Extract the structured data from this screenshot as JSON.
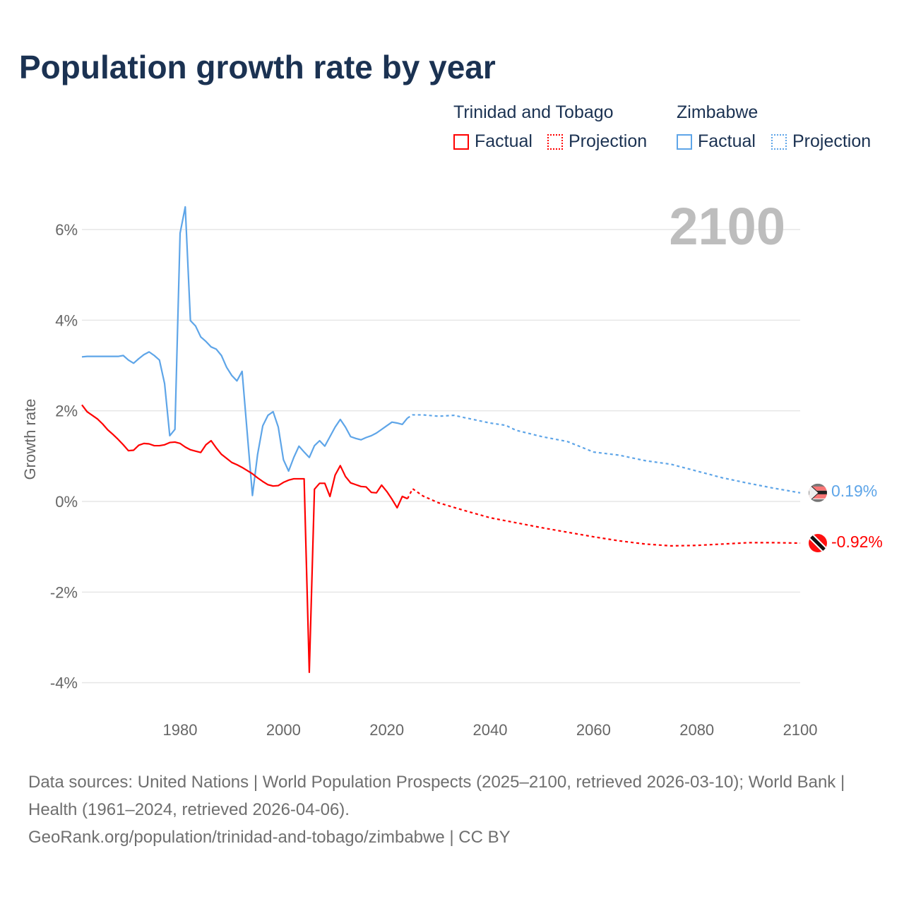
{
  "title": "Population growth rate by year",
  "legend": {
    "groups": [
      {
        "name": "Trinidad and Tobago",
        "color": "#ff0000",
        "factual": "Factual",
        "projection": "Projection"
      },
      {
        "name": "Zimbabwe",
        "color": "#5ea5e8",
        "factual": "Factual",
        "projection": "Projection"
      }
    ]
  },
  "current_year": "2100",
  "footer": {
    "sources": "Data sources: United Nations | World Population Prospects (2025–2100, retrieved 2026-03-10); World Bank | Health (1961–2024, retrieved 2026-04-06).",
    "link": "GeoRank.org/population/trinidad-and-tobago/zimbabwe | CC BY"
  },
  "chart_data": {
    "type": "line",
    "title": "Population growth rate by year",
    "xlabel": "",
    "ylabel": "Growth rate",
    "xlim": [
      1961,
      2100
    ],
    "ylim": [
      -4.6,
      6.6
    ],
    "x_ticks": [
      1980,
      2000,
      2020,
      2040,
      2060,
      2080,
      2100
    ],
    "x_tick_labels": [
      "1980",
      "2000",
      "2020",
      "2040",
      "2060",
      "2080",
      "2100"
    ],
    "y_ticks": [
      -4,
      -2,
      0,
      2,
      4,
      6
    ],
    "y_tick_labels": [
      "-4%",
      "-2%",
      "0%",
      "2%",
      "4%",
      "6%"
    ],
    "grid": true,
    "series": [
      {
        "name": "Zimbabwe",
        "color": "#5ea5e8",
        "end_label": "0.19%",
        "factual_start": 1961,
        "factual": [
          3.19,
          3.2,
          3.2,
          3.2,
          3.2,
          3.2,
          3.2,
          3.2,
          3.22,
          3.12,
          3.05,
          3.15,
          3.24,
          3.3,
          3.22,
          3.12,
          2.6,
          1.45,
          1.59,
          5.92,
          6.5,
          3.99,
          3.87,
          3.63,
          3.53,
          3.41,
          3.36,
          3.22,
          2.96,
          2.78,
          2.66,
          2.87,
          1.5,
          0.13,
          1.04,
          1.67,
          1.9,
          1.98,
          1.64,
          0.92,
          0.67,
          0.97,
          1.22,
          1.09,
          0.97,
          1.23,
          1.34,
          1.22,
          1.43,
          1.64,
          1.81,
          1.64,
          1.43,
          1.39,
          1.36,
          1.41,
          1.45,
          1.51,
          1.59,
          1.67,
          1.75,
          1.73,
          1.7,
          1.84
        ],
        "projection": [
          [
            2024,
            1.84
          ],
          [
            2025,
            1.91
          ],
          [
            2027,
            1.91
          ],
          [
            2030,
            1.88
          ],
          [
            2033,
            1.9
          ],
          [
            2035,
            1.85
          ],
          [
            2040,
            1.73
          ],
          [
            2043,
            1.68
          ],
          [
            2045,
            1.57
          ],
          [
            2050,
            1.43
          ],
          [
            2055,
            1.32
          ],
          [
            2060,
            1.09
          ],
          [
            2065,
            1.02
          ],
          [
            2070,
            0.9
          ],
          [
            2075,
            0.82
          ],
          [
            2080,
            0.67
          ],
          [
            2085,
            0.52
          ],
          [
            2090,
            0.4
          ],
          [
            2095,
            0.29
          ],
          [
            2100,
            0.19
          ]
        ]
      },
      {
        "name": "Trinidad and Tobago",
        "color": "#ff0000",
        "end_label": "-0.92%",
        "factual_start": 1961,
        "factual": [
          2.13,
          1.98,
          1.9,
          1.82,
          1.71,
          1.58,
          1.48,
          1.37,
          1.25,
          1.12,
          1.13,
          1.24,
          1.28,
          1.27,
          1.23,
          1.23,
          1.25,
          1.3,
          1.31,
          1.28,
          1.2,
          1.14,
          1.11,
          1.08,
          1.25,
          1.34,
          1.18,
          1.04,
          0.95,
          0.86,
          0.81,
          0.75,
          0.68,
          0.61,
          0.52,
          0.44,
          0.37,
          0.34,
          0.35,
          0.42,
          0.47,
          0.5,
          0.5,
          0.5,
          -3.77,
          0.27,
          0.4,
          0.4,
          0.11,
          0.58,
          0.79,
          0.55,
          0.41,
          0.37,
          0.33,
          0.32,
          0.2,
          0.19,
          0.36,
          0.22,
          0.05,
          -0.14,
          0.11,
          0.06
        ],
        "projection": [
          [
            2024,
            0.06
          ],
          [
            2025,
            0.28
          ],
          [
            2027,
            0.12
          ],
          [
            2030,
            -0.03
          ],
          [
            2035,
            -0.2
          ],
          [
            2040,
            -0.36
          ],
          [
            2045,
            -0.47
          ],
          [
            2050,
            -0.58
          ],
          [
            2055,
            -0.68
          ],
          [
            2060,
            -0.78
          ],
          [
            2065,
            -0.87
          ],
          [
            2070,
            -0.94
          ],
          [
            2075,
            -0.98
          ],
          [
            2080,
            -0.97
          ],
          [
            2085,
            -0.94
          ],
          [
            2090,
            -0.91
          ],
          [
            2095,
            -0.91
          ],
          [
            2100,
            -0.92
          ]
        ]
      }
    ]
  }
}
